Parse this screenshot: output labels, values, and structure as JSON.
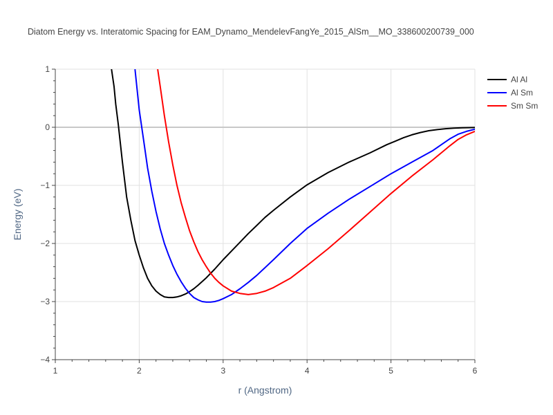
{
  "chart_data": {
    "type": "line",
    "title": "Diatom Energy vs. Interatomic Spacing for EAM_Dynamo_MendelevFangYe_2015_AlSm__MO_338600200739_000",
    "xlabel": "r (Angstrom)",
    "ylabel": "Energy (eV)",
    "xlim": [
      1,
      6
    ],
    "ylim": [
      -4,
      1
    ],
    "xticks": [
      1,
      2,
      3,
      4,
      5,
      6
    ],
    "yticks": [
      -4,
      -3,
      -2,
      -1,
      0,
      1
    ],
    "grid": true,
    "legend_position": "top-right",
    "series": [
      {
        "name": "Al Al",
        "color": "#000000",
        "x": [
          1.67,
          1.7,
          1.72,
          1.75,
          1.8,
          1.85,
          1.9,
          1.95,
          2.0,
          2.05,
          2.1,
          2.15,
          2.2,
          2.25,
          2.3,
          2.35,
          2.4,
          2.45,
          2.5,
          2.55,
          2.6,
          2.65,
          2.7,
          2.8,
          2.9,
          3.0,
          3.1,
          3.2,
          3.3,
          3.4,
          3.5,
          3.6,
          3.8,
          4.0,
          4.25,
          4.5,
          4.75,
          4.95,
          5.05,
          5.15,
          5.25,
          5.35,
          5.45,
          5.55,
          5.65,
          5.75,
          5.85,
          6.0
        ],
        "y": [
          1.0,
          0.7,
          0.4,
          0.05,
          -0.6,
          -1.2,
          -1.6,
          -1.95,
          -2.2,
          -2.42,
          -2.6,
          -2.73,
          -2.82,
          -2.88,
          -2.92,
          -2.93,
          -2.93,
          -2.92,
          -2.9,
          -2.87,
          -2.83,
          -2.78,
          -2.72,
          -2.59,
          -2.44,
          -2.28,
          -2.13,
          -1.98,
          -1.83,
          -1.69,
          -1.55,
          -1.43,
          -1.2,
          -0.99,
          -0.78,
          -0.6,
          -0.44,
          -0.3,
          -0.24,
          -0.18,
          -0.13,
          -0.09,
          -0.06,
          -0.04,
          -0.025,
          -0.015,
          -0.01,
          -0.005
        ]
      },
      {
        "name": "Al Sm",
        "color": "#0000ff",
        "x": [
          1.95,
          2.0,
          2.05,
          2.1,
          2.15,
          2.2,
          2.25,
          2.3,
          2.35,
          2.4,
          2.45,
          2.5,
          2.55,
          2.6,
          2.65,
          2.7,
          2.75,
          2.8,
          2.85,
          2.9,
          2.95,
          3.0,
          3.1,
          3.2,
          3.3,
          3.4,
          3.6,
          3.8,
          4.0,
          4.25,
          4.5,
          4.75,
          5.0,
          5.25,
          5.5,
          5.6,
          5.7,
          5.8,
          5.9,
          6.0
        ],
        "y": [
          1.0,
          0.3,
          -0.2,
          -0.7,
          -1.1,
          -1.45,
          -1.75,
          -2.0,
          -2.2,
          -2.38,
          -2.53,
          -2.66,
          -2.77,
          -2.86,
          -2.93,
          -2.97,
          -3.0,
          -3.01,
          -3.01,
          -3.0,
          -2.98,
          -2.95,
          -2.88,
          -2.78,
          -2.67,
          -2.55,
          -2.28,
          -2.0,
          -1.74,
          -1.48,
          -1.24,
          -1.02,
          -0.8,
          -0.6,
          -0.4,
          -0.3,
          -0.2,
          -0.12,
          -0.07,
          -0.035
        ]
      },
      {
        "name": "Sm Sm",
        "color": "#ff0000",
        "x": [
          2.22,
          2.25,
          2.3,
          2.35,
          2.4,
          2.45,
          2.5,
          2.55,
          2.6,
          2.65,
          2.7,
          2.75,
          2.8,
          2.85,
          2.9,
          2.95,
          3.0,
          3.1,
          3.2,
          3.3,
          3.4,
          3.5,
          3.6,
          3.8,
          4.0,
          4.25,
          4.5,
          4.75,
          5.0,
          5.25,
          5.5,
          5.6,
          5.7,
          5.8,
          5.9,
          6.0
        ],
        "y": [
          1.0,
          0.7,
          0.2,
          -0.25,
          -0.65,
          -1.0,
          -1.3,
          -1.55,
          -1.78,
          -1.97,
          -2.14,
          -2.28,
          -2.4,
          -2.51,
          -2.6,
          -2.67,
          -2.73,
          -2.82,
          -2.86,
          -2.88,
          -2.86,
          -2.82,
          -2.76,
          -2.6,
          -2.38,
          -2.09,
          -1.78,
          -1.46,
          -1.14,
          -0.84,
          -0.56,
          -0.44,
          -0.32,
          -0.21,
          -0.13,
          -0.07
        ]
      }
    ]
  }
}
